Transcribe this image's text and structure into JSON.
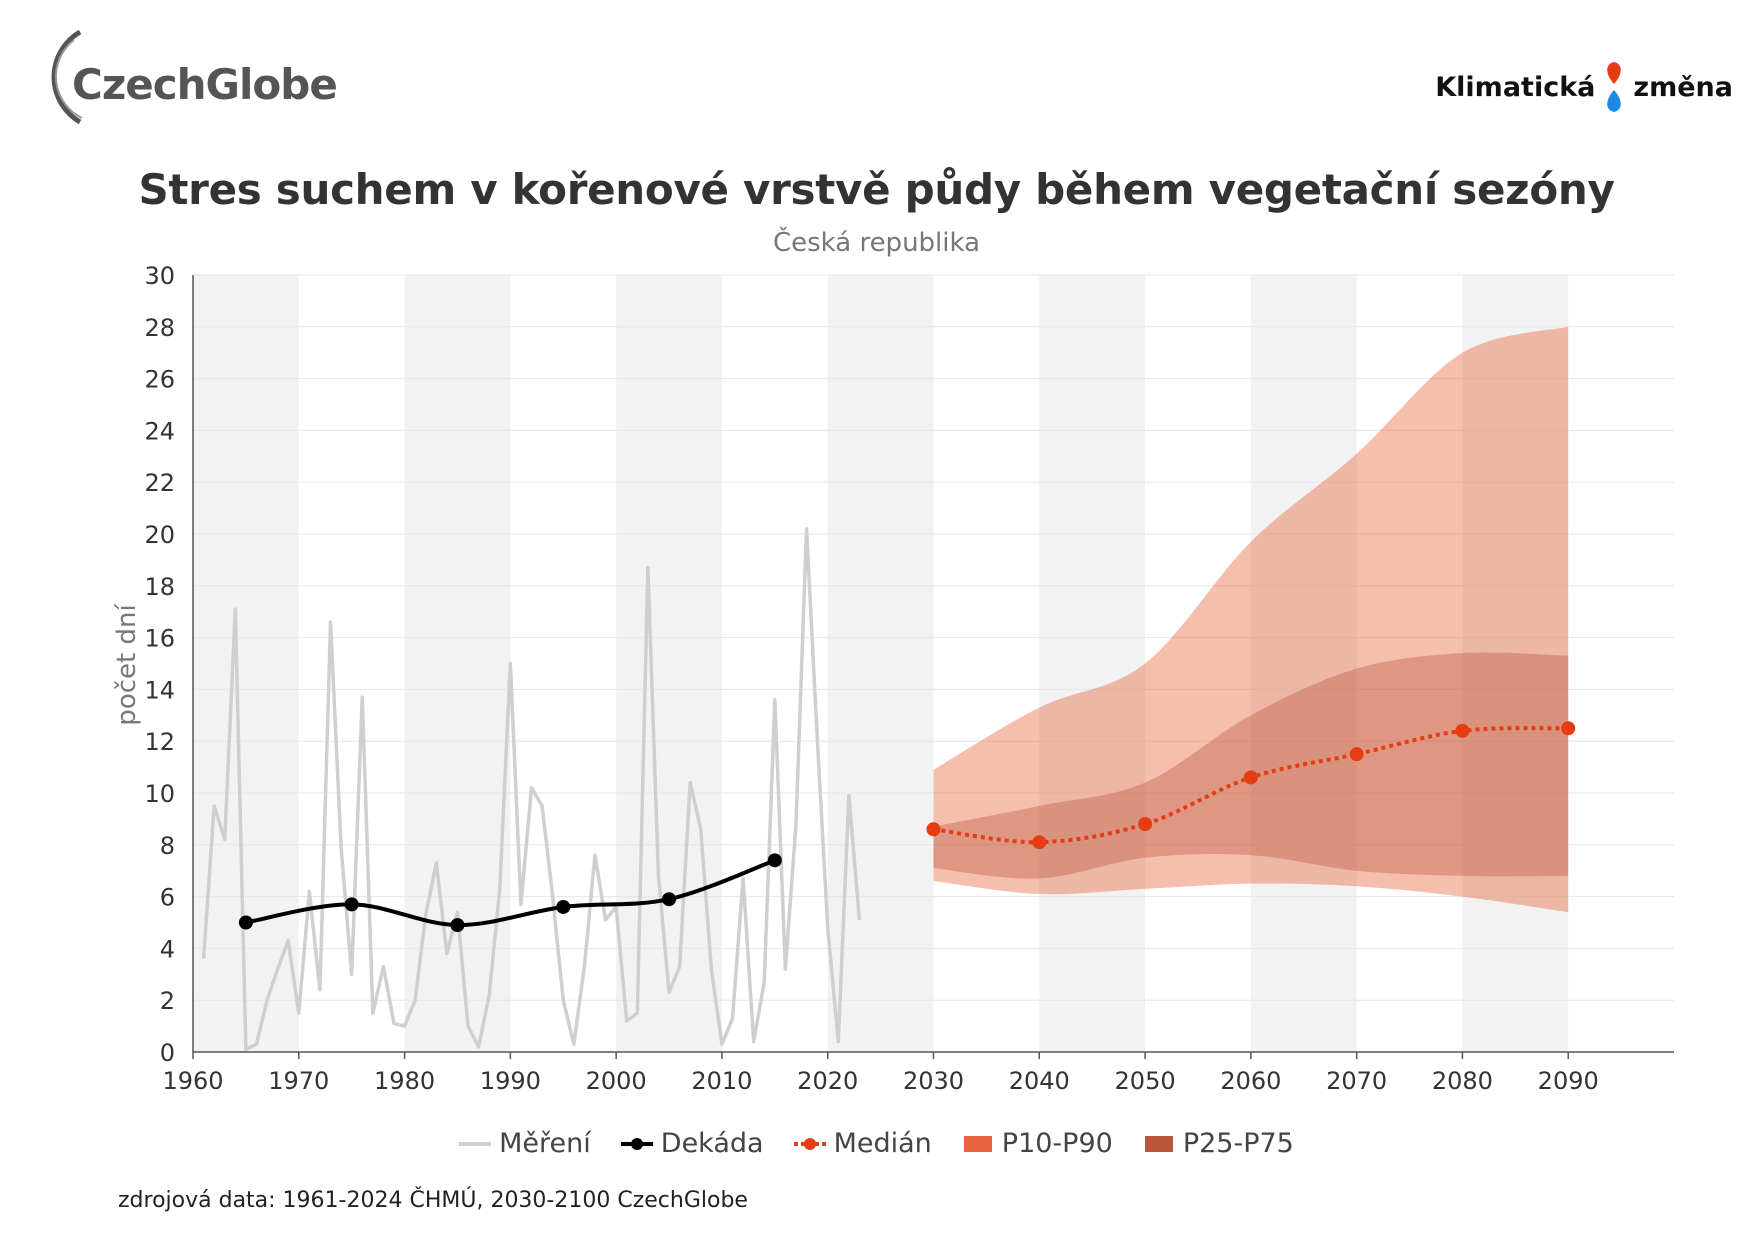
{
  "header": {
    "logo_left": "CzechGlobe",
    "logo_right_left": "Klimatická",
    "logo_right_right": "změna"
  },
  "chart_data": {
    "type": "line",
    "title": "Stres suchem v kořenové vrstvě půdy během vegetační sezóny",
    "subtitle": "Česká republika",
    "ylabel": "počet dní",
    "xlabel": "",
    "xlim": [
      1960,
      2100
    ],
    "ylim": [
      0,
      30
    ],
    "x_ticks": [
      1960,
      1970,
      1980,
      1990,
      2000,
      2010,
      2020,
      2030,
      2040,
      2050,
      2060,
      2070,
      2080,
      2090
    ],
    "y_ticks": [
      0,
      2,
      4,
      6,
      8,
      10,
      12,
      14,
      16,
      18,
      20,
      22,
      24,
      26,
      28,
      30
    ],
    "grid": true,
    "legend_position": "bottom",
    "colors": {
      "measured": "#cfcfcf",
      "decade": "#000000",
      "median": "#e63c13",
      "p10_p90": "#e8643c",
      "p25_p75": "#b8563c",
      "stripe": "#f2f2f2"
    },
    "series": [
      {
        "name": "Měření",
        "x": [
          1961,
          1962,
          1963,
          1964,
          1965,
          1966,
          1967,
          1968,
          1969,
          1970,
          1971,
          1972,
          1973,
          1974,
          1975,
          1976,
          1977,
          1978,
          1979,
          1980,
          1981,
          1982,
          1983,
          1984,
          1985,
          1986,
          1987,
          1988,
          1989,
          1990,
          1991,
          1992,
          1993,
          1994,
          1995,
          1996,
          1997,
          1998,
          1999,
          2000,
          2001,
          2002,
          2003,
          2004,
          2005,
          2006,
          2007,
          2008,
          2009,
          2010,
          2011,
          2012,
          2013,
          2014,
          2015,
          2016,
          2017,
          2018,
          2019,
          2020,
          2021,
          2022,
          2023
        ],
        "y": [
          3.6,
          9.5,
          8.2,
          17.1,
          0.1,
          0.3,
          2.0,
          3.2,
          4.3,
          1.5,
          6.2,
          2.4,
          16.6,
          7.9,
          3.0,
          13.7,
          1.5,
          3.3,
          1.1,
          1.0,
          2.0,
          5.3,
          7.3,
          3.8,
          5.4,
          1.0,
          0.2,
          2.2,
          6.3,
          15.0,
          5.7,
          10.2,
          9.5,
          6.0,
          2.0,
          0.3,
          3.3,
          7.6,
          5.1,
          5.6,
          1.2,
          1.5,
          18.7,
          6.8,
          2.3,
          3.3,
          10.4,
          8.6,
          3.2,
          0.3,
          1.3,
          6.7,
          0.4,
          2.7,
          13.6,
          3.2,
          8.8,
          20.2,
          12.2,
          4.8,
          0.4,
          9.9,
          5.1
        ]
      },
      {
        "name": "Dekáda",
        "x": [
          1965,
          1975,
          1985,
          1995,
          2005,
          2015
        ],
        "y": [
          5.0,
          5.7,
          4.9,
          5.6,
          5.9,
          7.4
        ]
      },
      {
        "name": "Medián",
        "x": [
          2030,
          2040,
          2050,
          2060,
          2070,
          2080,
          2090
        ],
        "y": [
          8.6,
          8.1,
          8.8,
          10.6,
          11.5,
          12.4,
          12.5
        ]
      }
    ],
    "bands": [
      {
        "name": "P10-P90",
        "x": [
          2030,
          2040,
          2050,
          2060,
          2070,
          2080,
          2090
        ],
        "low": [
          6.6,
          6.1,
          6.3,
          6.5,
          6.4,
          6.0,
          5.4
        ],
        "high": [
          10.9,
          13.3,
          15.0,
          19.7,
          23.1,
          27.0,
          28.0
        ]
      },
      {
        "name": "P25-P75",
        "x": [
          2030,
          2040,
          2050,
          2060,
          2070,
          2080,
          2090
        ],
        "low": [
          7.1,
          6.7,
          7.5,
          7.6,
          7.0,
          6.8,
          6.8
        ],
        "high": [
          8.7,
          9.5,
          10.4,
          13.0,
          14.8,
          15.4,
          15.3
        ]
      }
    ]
  },
  "legend": {
    "items": [
      "Měření",
      "Dekáda",
      "Medián",
      "P10-P90",
      "P25-P75"
    ]
  },
  "footer": {
    "source": "zdrojová data: 1961-2024 ČHMÚ, 2030-2100 CzechGlobe"
  }
}
